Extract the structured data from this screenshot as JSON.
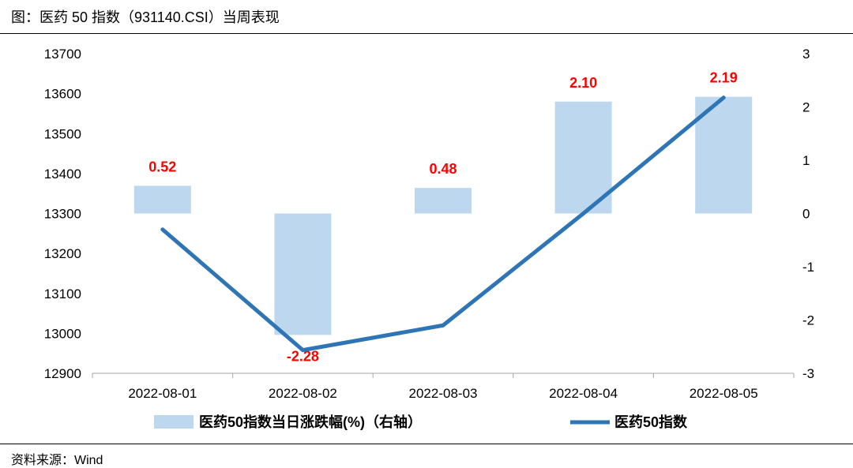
{
  "header": {
    "title": "图：医药 50 指数（931140.CSI）当周表现"
  },
  "footer": {
    "source": "资料来源：Wind"
  },
  "chart_data": {
    "type": "bar+line",
    "categories": [
      "2022-08-01",
      "2022-08-02",
      "2022-08-03",
      "2022-08-04",
      "2022-08-05"
    ],
    "series": [
      {
        "name": "医药50指数当日涨跌幅(%)（右轴）",
        "type": "bar",
        "axis": "right",
        "values": [
          0.52,
          -2.28,
          0.48,
          2.1,
          2.19
        ],
        "labels": [
          "0.52",
          "-2.28",
          "0.48",
          "2.10",
          "2.19"
        ],
        "color": "#bdd7ee"
      },
      {
        "name": "医药50指数",
        "type": "line",
        "axis": "left",
        "values": [
          13260,
          12958,
          13020,
          13300,
          13590
        ],
        "color": "#2e75b6"
      }
    ],
    "y_left": {
      "min": 12900,
      "max": 13700,
      "ticks": [
        "13700",
        "13600",
        "13500",
        "13400",
        "13300",
        "13200",
        "13100",
        "13000",
        "12900"
      ]
    },
    "y_right": {
      "min": -3,
      "max": 3,
      "ticks": [
        "3",
        "2",
        "1",
        "0",
        "-1",
        "-2",
        "-3"
      ]
    },
    "grid": false,
    "legend_position": "bottom",
    "label_color": "#ff0000"
  }
}
